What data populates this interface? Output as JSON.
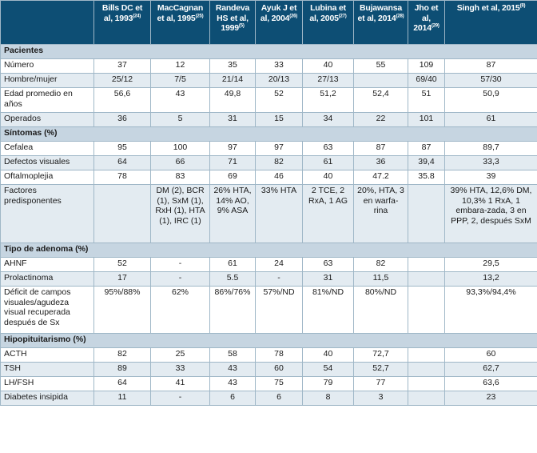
{
  "headers": [
    {
      "name": "",
      "ref": ""
    },
    {
      "name": "Bills DC et al, 1993",
      "ref": "(24)"
    },
    {
      "name": "MacCagnan et al, 1995",
      "ref": "(25)"
    },
    {
      "name": "Randeva HS et al, 1999",
      "ref": "(5)"
    },
    {
      "name": "Ayuk J et al, 2004",
      "ref": "(26)"
    },
    {
      "name": "Lubina et al, 2005",
      "ref": "(27)"
    },
    {
      "name": "Bujawansa et al, 2014",
      "ref": "(28)"
    },
    {
      "name": "Jho et al, 2014",
      "ref": "(29)"
    },
    {
      "name": "Singh et al, 2015",
      "ref": "(8)"
    }
  ],
  "sections": [
    {
      "title": "Pacientes",
      "rows": [
        {
          "label": "Número",
          "values": [
            "37",
            "12",
            "35",
            "33",
            "40",
            "55",
            "109",
            "87"
          ],
          "kind": "single"
        },
        {
          "label": "Hombre/mujer",
          "values": [
            "25/12",
            "7/5",
            "21/14",
            "20/13",
            "27/13",
            "",
            "69/40",
            "57/30"
          ],
          "kind": "single"
        },
        {
          "label": "Edad promedio en años",
          "values": [
            "56,6",
            "43",
            "49,8",
            "52",
            "51,2",
            "52,4",
            "51",
            "50,9"
          ],
          "kind": "twoline"
        },
        {
          "label": "Operados",
          "values": [
            "36",
            "5",
            "31",
            "15",
            "34",
            "22",
            "101",
            "61"
          ],
          "kind": "single"
        }
      ]
    },
    {
      "title": "Síntomas (%)",
      "rows": [
        {
          "label": "Cefalea",
          "values": [
            "95",
            "100",
            "97",
            "97",
            "63",
            "87",
            "87",
            "89,7"
          ],
          "kind": "single"
        },
        {
          "label": "Defectos visuales",
          "values": [
            "64",
            "66",
            "71",
            "82",
            "61",
            "36",
            "39,4",
            "33,3"
          ],
          "kind": "single"
        },
        {
          "label": "Oftalmoplejia",
          "values": [
            "78",
            "83",
            "69",
            "46",
            "40",
            "47.2",
            "35.8",
            "39"
          ],
          "kind": "single"
        },
        {
          "label": "Factores predisponentes",
          "values": [
            "",
            "DM (2), BCR (1), SxM (1), RxH (1), HTA (1), IRC (1)",
            "26% HTA, 14% AO, 9% ASA",
            "33% HTA",
            "2 TCE, 2 RxA, 1 AG",
            "20%, HTA, 3 en warfa-rina",
            "",
            "39% HTA, 12,6% DM, 10,3% 1 RxA, 1 embara-zada, 3 en PPP, 2, después SxM"
          ],
          "kind": "multi"
        }
      ]
    },
    {
      "title": "Tipo de adenoma (%)",
      "rows": [
        {
          "label": "AHNF",
          "values": [
            "52",
            "-",
            "61",
            "24",
            "63",
            "82",
            "",
            "29,5"
          ],
          "kind": "single"
        },
        {
          "label": "Prolactinoma",
          "values": [
            "17",
            "-",
            "5.5",
            "-",
            "31",
            "11,5",
            "",
            "13,2"
          ],
          "kind": "single"
        },
        {
          "label": "Déficit de campos visuales/agudeza visual recuperada después de Sx",
          "values": [
            "95%/88%",
            "62%",
            "86%/76%",
            "57%/ND",
            "81%/ND",
            "80%/ND",
            "",
            "93,3%/94,4%"
          ],
          "kind": "deficit"
        }
      ]
    },
    {
      "title": "Hipopituitarismo (%)",
      "rows": [
        {
          "label": "ACTH",
          "values": [
            "82",
            "25",
            "58",
            "78",
            "40",
            "72,7",
            "",
            "60"
          ],
          "kind": "single"
        },
        {
          "label": "TSH",
          "values": [
            "89",
            "33",
            "43",
            "60",
            "54",
            "52,7",
            "",
            "62,7"
          ],
          "kind": "single"
        },
        {
          "label": "LH/FSH",
          "values": [
            "64",
            "41",
            "43",
            "75",
            "79",
            "77",
            "",
            "63,6"
          ],
          "kind": "single"
        },
        {
          "label": "Diabetes insipida",
          "values": [
            "11",
            "-",
            "6",
            "6",
            "8",
            "3",
            "",
            "23"
          ],
          "kind": "single"
        }
      ]
    }
  ]
}
